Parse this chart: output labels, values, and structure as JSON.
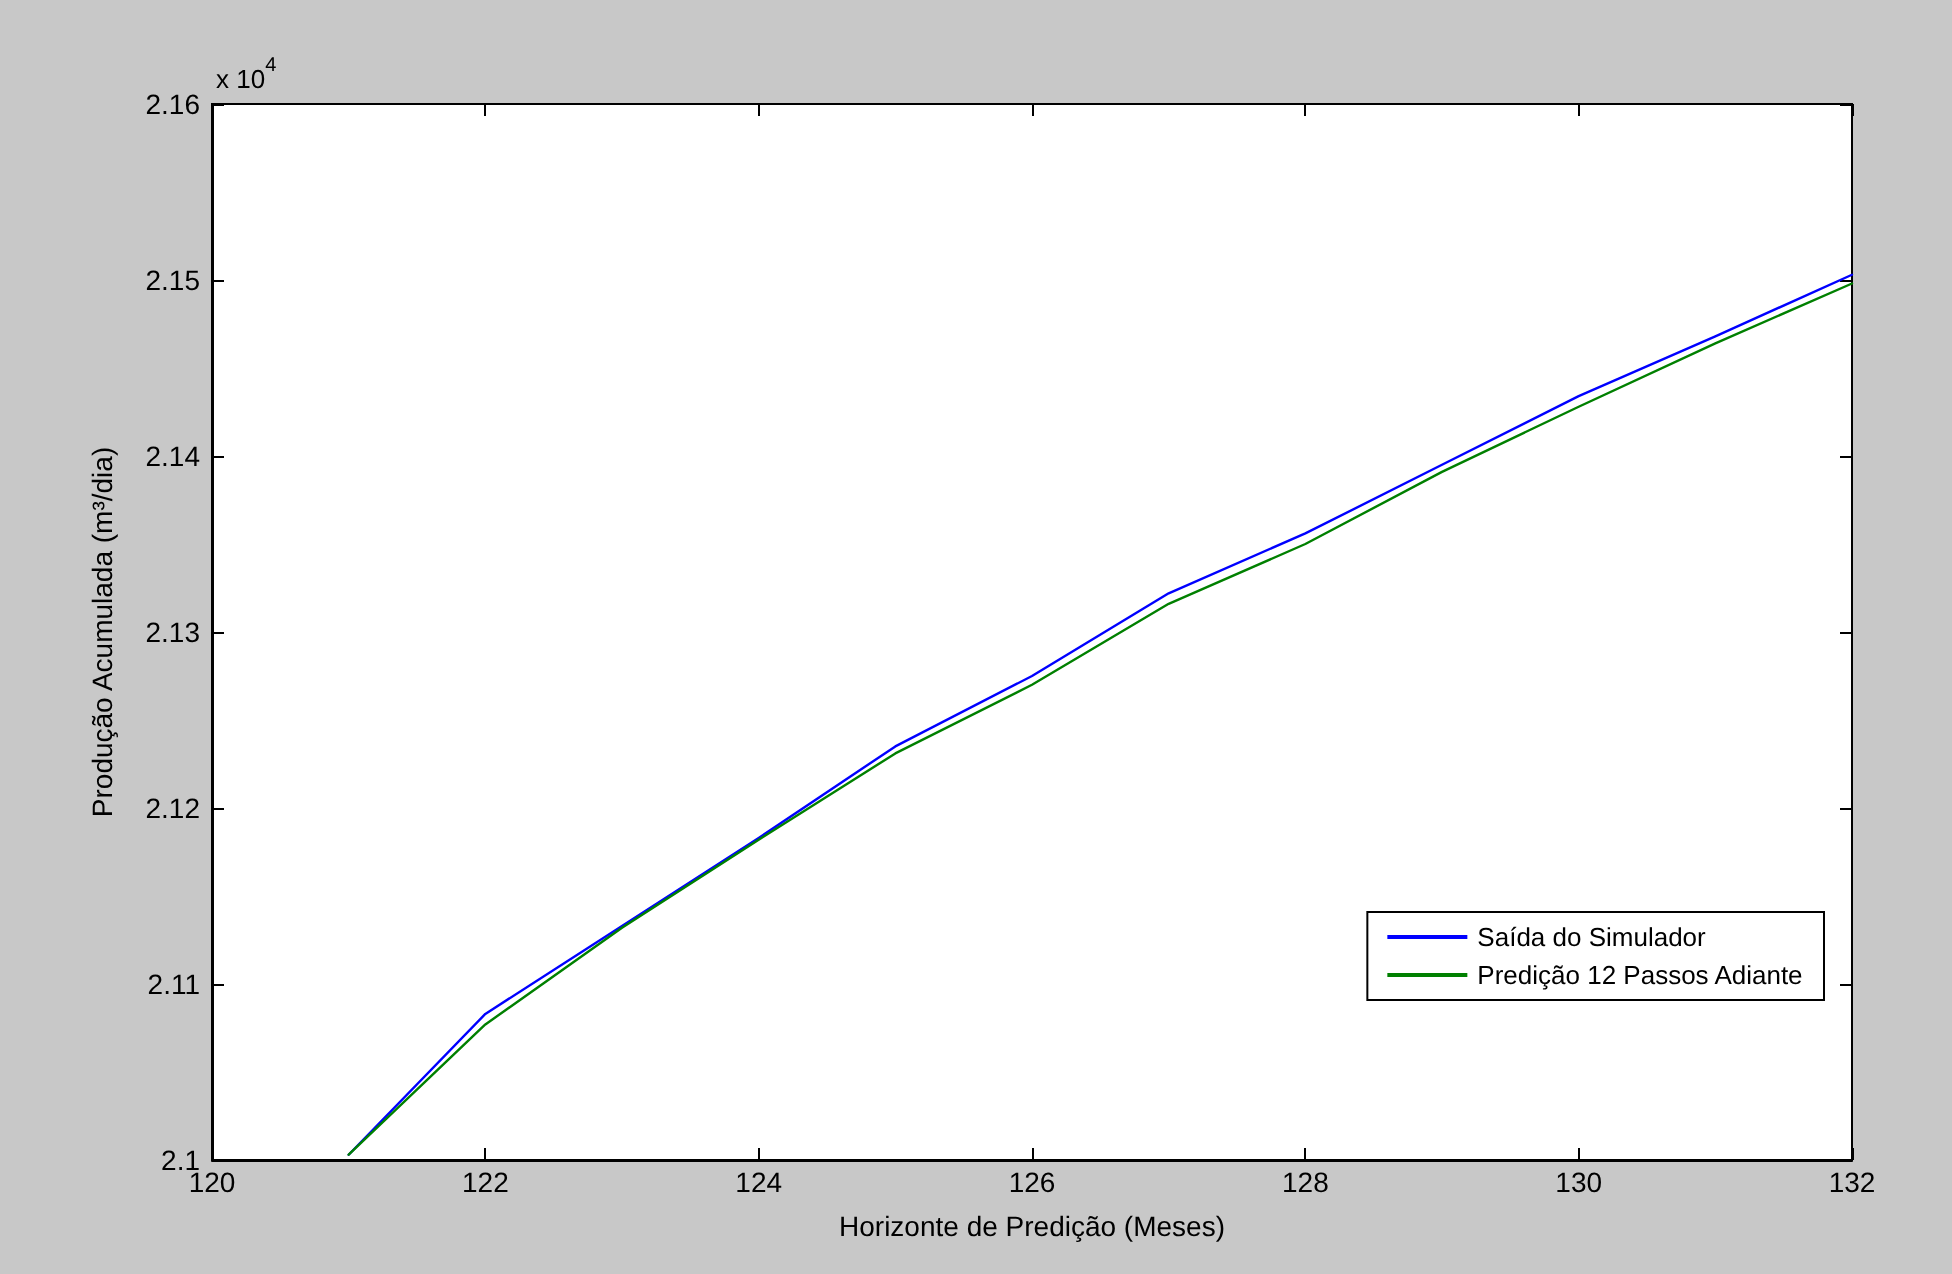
{
  "chart_data": {
    "type": "line",
    "xlabel": "Horizonte de Predição (Meses)",
    "ylabel": "Produção Acumulada (m³/dia)",
    "annotations": [
      "x 10$^{4}$"
    ],
    "x": [
      121,
      122,
      123,
      124,
      125,
      126,
      127,
      128,
      129,
      130,
      131,
      132
    ],
    "series": [
      {
        "name": "Saída do Simulador",
        "color": "#0000ff",
        "values": [
          2.1003,
          2.1083,
          2.1133,
          2.1183,
          2.1235,
          2.1275,
          2.1322,
          2.1356,
          2.1395,
          2.1434,
          2.1468,
          2.1503
        ]
      },
      {
        "name": "Predição 12 Passos Adiante",
        "color": "#008000",
        "values": [
          2.1003,
          2.1077,
          2.1132,
          2.1182,
          2.1231,
          2.127,
          2.1316,
          2.135,
          2.1391,
          2.1428,
          2.1464,
          2.1498
        ]
      }
    ],
    "xlim": [
      120,
      132
    ],
    "xticks": [
      120,
      122,
      124,
      126,
      128,
      130,
      132
    ],
    "ylim": [
      2.1,
      2.16
    ],
    "yticks": [
      2.1,
      2.11,
      2.12,
      2.13,
      2.14,
      2.15,
      2.16
    ],
    "grid": false,
    "legend": "bottom right",
    "marker": "none",
    "line_style": "solid"
  }
}
